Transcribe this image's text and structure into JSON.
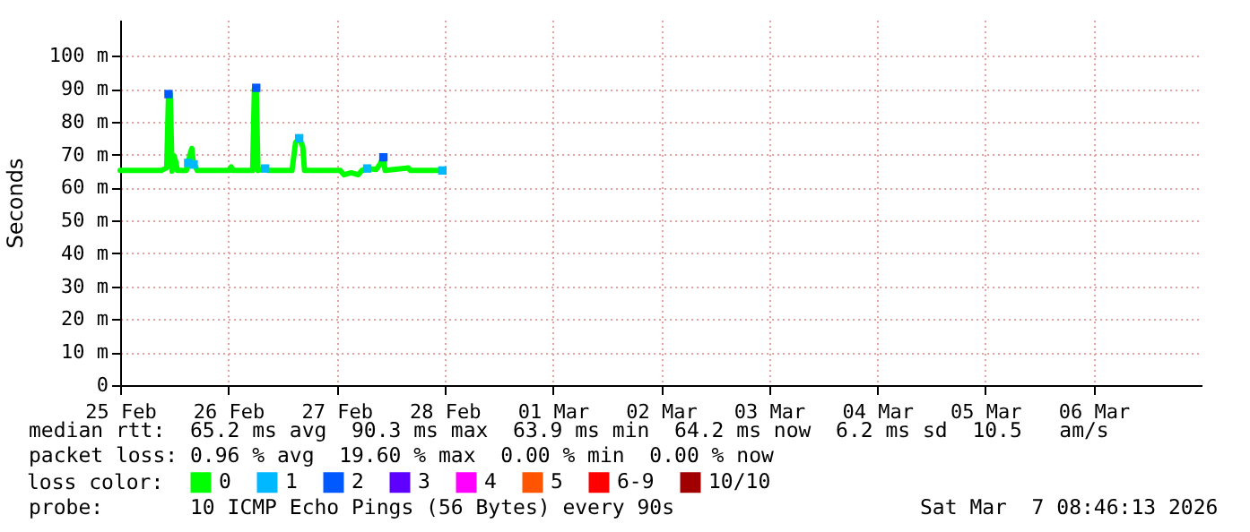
{
  "chart_data": {
    "type": "line",
    "ylabel": "Seconds",
    "legend_title": "loss color:",
    "legend": "bottom",
    "grid": true,
    "xlim": [
      "2026-02-25",
      "2026-03-07"
    ],
    "xticks": [
      {
        "value": "2026-02-25",
        "label": "25 Feb"
      },
      {
        "value": "2026-02-26",
        "label": "26 Feb"
      },
      {
        "value": "2026-02-27",
        "label": "27 Feb"
      },
      {
        "value": "2026-02-28",
        "label": "28 Feb"
      },
      {
        "value": "2026-03-01",
        "label": "01 Mar"
      },
      {
        "value": "2026-03-02",
        "label": "02 Mar"
      },
      {
        "value": "2026-03-03",
        "label": "03 Mar"
      },
      {
        "value": "2026-03-04",
        "label": "04 Mar"
      },
      {
        "value": "2026-03-05",
        "label": "05 Mar"
      },
      {
        "value": "2026-03-06",
        "label": "06 Mar"
      }
    ],
    "ylim": [
      0,
      111
    ],
    "yticks": [
      0,
      {
        "value": 10,
        "label": "10 m"
      },
      {
        "value": 20,
        "label": "20 m"
      },
      {
        "value": 30,
        "label": "30 m"
      },
      {
        "value": 40,
        "label": "40 m"
      },
      {
        "value": 50,
        "label": "50 m"
      },
      {
        "value": 60,
        "label": "60 m"
      },
      {
        "value": 70,
        "label": "70 m"
      },
      {
        "value": 80,
        "label": "80 m"
      },
      {
        "value": 90,
        "label": "90 m"
      },
      {
        "value": 100,
        "label": "100 m"
      }
    ],
    "annotations": [
      "median rtt:  65.2 ms avg  90.3 ms max  63.9 ms min  64.2 ms now  6.2 ms sd  10.5   am/s",
      "packet loss: 0.96 % avg  19.60 % max  0.00 % min  0.00 % now",
      "probe:       10 ICMP Echo Pings (56 Bytes) every 90s",
      "Sat Mar  7 08:46:13 2026"
    ],
    "series": [
      {
        "name": "0",
        "color": "#00ff00",
        "x": [
          "2026-02-25T00:00",
          "2026-02-25T09:08",
          "2026-02-25T10:20",
          "2026-02-25T10:44",
          "2026-02-25T11:07",
          "2026-02-25T11:31",
          "2026-02-25T11:55",
          "2026-02-25T12:19",
          "2026-02-25T12:43",
          "2026-02-25T14:42",
          "2026-02-25T15:06",
          "2026-02-25T15:30",
          "2026-02-25T15:54",
          "2026-02-25T16:18",
          "2026-02-25T16:41",
          "2026-02-25T17:05",
          "2026-02-26T00:14",
          "2026-02-26T00:38",
          "2026-02-26T01:02",
          "2026-02-26T05:24",
          "2026-02-26T05:48",
          "2026-02-26T06:12",
          "2026-02-26T06:35",
          "2026-02-26T08:11",
          "2026-02-26T08:59",
          "2026-02-26T14:08",
          "2026-02-26T14:56",
          "2026-02-26T15:44",
          "2026-02-26T16:31",
          "2026-02-26T16:55",
          "2026-02-27T00:52",
          "2026-02-27T01:39",
          "2026-02-27T03:15",
          "2026-02-27T04:50",
          "2026-02-27T05:38",
          "2026-02-27T06:50",
          "2026-02-27T08:49",
          "2026-02-27T09:37",
          "2026-02-27T10:25",
          "2026-02-27T10:48",
          "2026-02-27T15:58",
          "2026-02-27T16:22",
          "2026-02-27T23:31"
        ],
        "values": [
          65.2,
          65.2,
          66,
          88.4,
          88.4,
          65,
          69.7,
          68,
          65.2,
          65.2,
          67.5,
          70,
          71.9,
          67,
          66.5,
          65.2,
          65.2,
          66.3,
          65.2,
          65.2,
          90.2,
          90.3,
          65.2,
          65.8,
          65.2,
          65.2,
          73.7,
          75,
          72.5,
          65.2,
          65.2,
          63.9,
          64.5,
          63.9,
          65.2,
          65.8,
          65.5,
          67,
          69.2,
          65.2,
          66,
          65.2,
          65.2
        ]
      },
      {
        "name": "1",
        "type": "scatter",
        "marker": "square",
        "color": "#00b8ff",
        "x": [
          "2026-02-25T15:06",
          "2026-02-25T16:18",
          "2026-02-26T08:11",
          "2026-02-26T15:44",
          "2026-02-27T06:50",
          "2026-02-27T23:31"
        ],
        "values": [
          67.5,
          67,
          65.8,
          75,
          65.8,
          65.2
        ]
      },
      {
        "name": "2",
        "type": "scatter",
        "marker": "square",
        "color": "#0059ff",
        "x": [
          "2026-02-25T10:44",
          "2026-02-26T06:12",
          "2026-02-27T10:25"
        ],
        "values": [
          88.4,
          90.3,
          69.2
        ]
      },
      {
        "name": "3",
        "type": "scatter",
        "color": "#5e00ff"
      },
      {
        "name": "4",
        "type": "scatter",
        "color": "#ff00ff"
      },
      {
        "name": "5",
        "type": "scatter",
        "color": "#ff5500"
      },
      {
        "name": "6-9",
        "type": "scatter",
        "color": "#ff0000"
      },
      {
        "name": "10/10",
        "type": "scatter",
        "color": "#a10000"
      }
    ]
  }
}
